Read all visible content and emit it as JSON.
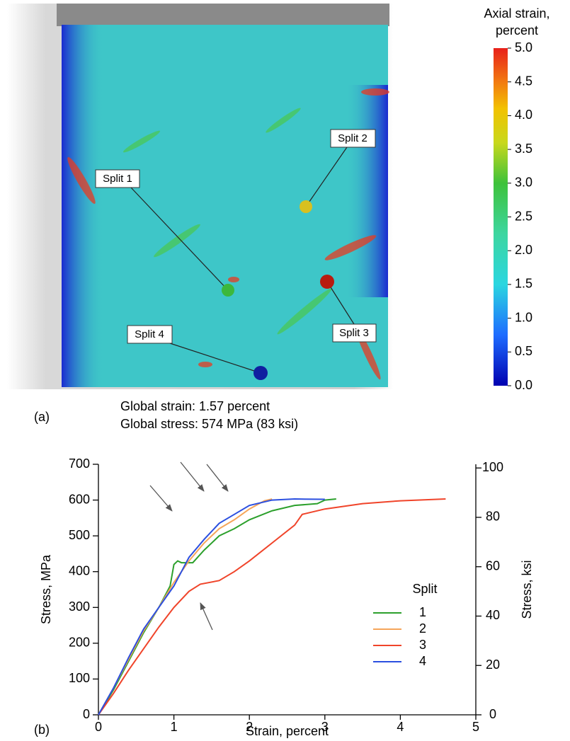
{
  "figure": {
    "panel_a_label": "(a)",
    "panel_b_label": "(b)",
    "colorbar": {
      "title_lines": [
        "Axial strain,",
        "percent"
      ],
      "ticks": [
        {
          "value": 0,
          "label": "0.0"
        },
        {
          "value": 0.5,
          "label": "0.5"
        },
        {
          "value": 1,
          "label": "1.0"
        },
        {
          "value": 1.5,
          "label": "1.5"
        },
        {
          "value": 2,
          "label": "2.0"
        },
        {
          "value": 2.5,
          "label": "2.5"
        },
        {
          "value": 3,
          "label": "3.0"
        },
        {
          "value": 3.5,
          "label": "3.5"
        },
        {
          "value": 4,
          "label": "4.0"
        },
        {
          "value": 4.5,
          "label": "4.5"
        },
        {
          "value": 5,
          "label": "5.0"
        }
      ],
      "lim": [
        0,
        5
      ]
    },
    "split_labels": [
      "Split 1",
      "Split 2",
      "Split 3",
      "Split 4"
    ],
    "caption_lines": [
      "Global strain: 1.57 percent",
      "Global stress: 574 MPa (83 ksi)"
    ]
  },
  "chart_data": {
    "type": "line",
    "xlabel": "Strain, percent",
    "ylabel": "Stress, MPa",
    "y2label": "Stress, ksi",
    "xlim": [
      0,
      5
    ],
    "xticks": [
      0,
      1,
      2,
      3,
      4,
      5
    ],
    "ylim": [
      0,
      700
    ],
    "yticks": [
      0,
      100,
      200,
      300,
      400,
      500,
      600,
      700
    ],
    "y2lim": [
      0,
      101.5
    ],
    "y2ticks": [
      0,
      20,
      40,
      60,
      80,
      100
    ],
    "legend_title": "Split",
    "series": [
      {
        "name": "1",
        "color": "#2ca02c",
        "x": [
          0,
          0.2,
          0.4,
          0.6,
          0.8,
          0.95,
          1.0,
          1.05,
          1.1,
          1.25,
          1.4,
          1.6,
          1.8,
          2.0,
          2.3,
          2.6,
          2.9,
          3.0,
          3.15
        ],
        "values": [
          0,
          70,
          150,
          230,
          300,
          360,
          420,
          430,
          425,
          425,
          460,
          500,
          520,
          545,
          570,
          585,
          590,
          600,
          603
        ]
      },
      {
        "name": "2",
        "color": "#f5a55a",
        "x": [
          0,
          0.2,
          0.4,
          0.6,
          0.8,
          1.0,
          1.2,
          1.4,
          1.6,
          1.8,
          2.0,
          2.2,
          2.3
        ],
        "values": [
          0,
          75,
          155,
          235,
          300,
          370,
          430,
          480,
          520,
          545,
          575,
          598,
          603
        ]
      },
      {
        "name": "3",
        "color": "#f0442a",
        "x": [
          0,
          0.2,
          0.4,
          0.6,
          0.8,
          1.0,
          1.2,
          1.35,
          1.6,
          1.8,
          2.0,
          2.3,
          2.6,
          2.7,
          3.0,
          3.5,
          4.0,
          4.6
        ],
        "values": [
          0,
          60,
          125,
          185,
          245,
          300,
          345,
          365,
          375,
          400,
          430,
          480,
          530,
          560,
          575,
          590,
          598,
          603
        ]
      },
      {
        "name": "4",
        "color": "#2b4fe0",
        "x": [
          0,
          0.2,
          0.4,
          0.6,
          0.8,
          1.0,
          1.1,
          1.2,
          1.4,
          1.6,
          1.8,
          2.0,
          2.3,
          2.6,
          3.0
        ],
        "values": [
          0,
          75,
          160,
          240,
          300,
          360,
          400,
          440,
          490,
          535,
          560,
          585,
          600,
          603,
          602
        ]
      }
    ]
  }
}
